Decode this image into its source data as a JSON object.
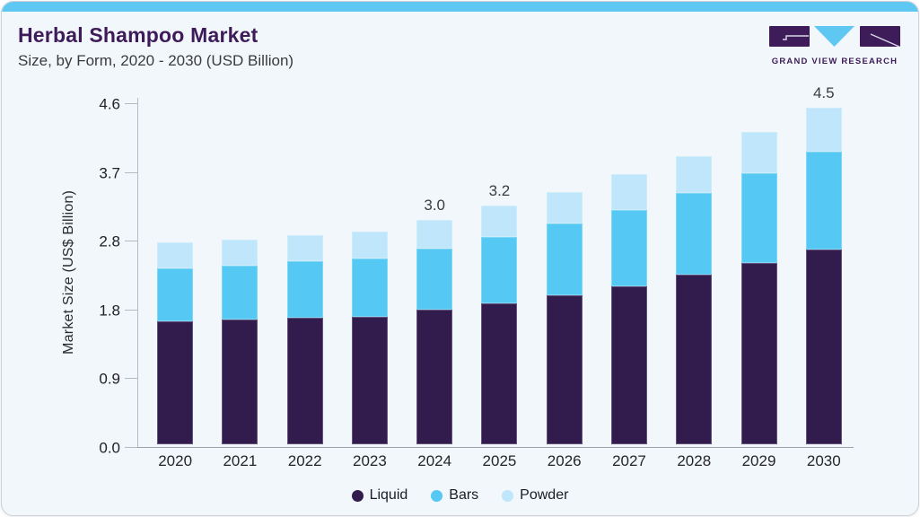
{
  "header": {
    "title": "Herbal Shampoo Market",
    "subtitle": "Size, by Form, 2020 - 2030 (USD Billion)",
    "logo_text": "GRAND VIEW RESEARCH"
  },
  "colors": {
    "accent_top_bar": "#5ec7f2",
    "card_background": "#f1f7fb",
    "title_purple": "#3e1b59",
    "liquid": "#321b4d",
    "bars": "#56c8f4",
    "powder": "#bfe6fa",
    "axis_line": "#9aa2aa"
  },
  "chart_data": {
    "type": "bar",
    "stacked": true,
    "title": "Herbal Shampoo Market Size, by Form, 2020 - 2030 (USD Billion)",
    "xlabel": "",
    "ylabel": "Market Size (US$ Billion)",
    "ylim": [
      0,
      4.6
    ],
    "yticks": [
      "0.0",
      "0.9",
      "1.8",
      "2.8",
      "3.7",
      "4.6"
    ],
    "grid": false,
    "legend_position": "bottom",
    "categories": [
      "2020",
      "2021",
      "2022",
      "2023",
      "2024",
      "2025",
      "2026",
      "2027",
      "2028",
      "2029",
      "2030"
    ],
    "series": [
      {
        "name": "Liquid",
        "color": "#321b4d",
        "values": [
          1.65,
          1.67,
          1.69,
          1.71,
          1.8,
          1.89,
          2.0,
          2.12,
          2.27,
          2.43,
          2.61
        ]
      },
      {
        "name": "Bars",
        "color": "#56c8f4",
        "values": [
          0.7,
          0.72,
          0.76,
          0.78,
          0.82,
          0.88,
          0.95,
          1.02,
          1.09,
          1.2,
          1.3
        ]
      },
      {
        "name": "Powder",
        "color": "#bfe6fa",
        "values": [
          0.35,
          0.35,
          0.35,
          0.36,
          0.38,
          0.43,
          0.43,
          0.47,
          0.5,
          0.55,
          0.59
        ]
      }
    ],
    "totals": [
      2.7,
      2.74,
      2.8,
      2.85,
      3.0,
      3.2,
      3.38,
      3.61,
      3.86,
      4.18,
      4.5
    ],
    "total_labels": [
      "",
      "",
      "",
      "",
      "3.0",
      "3.2",
      "",
      "",
      "",
      "",
      "4.5"
    ]
  }
}
